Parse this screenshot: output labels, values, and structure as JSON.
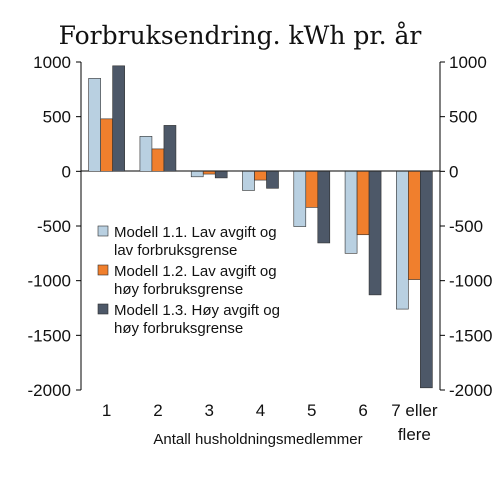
{
  "chart_data": {
    "type": "bar",
    "title": "Forbruksendring. kWh pr. år",
    "xlabel": "Antall husholdningsmedlemmer",
    "ylabel": "",
    "ylim": [
      -2000,
      1000
    ],
    "yticks": [
      "1000",
      "500",
      "0",
      "-500",
      "-1000",
      "-1500",
      "-2000"
    ],
    "categories": [
      "1",
      "2",
      "3",
      "4",
      "5",
      "6",
      "7 eller flere"
    ],
    "category_lines": [
      [
        "1"
      ],
      [
        "2"
      ],
      [
        "3"
      ],
      [
        "4"
      ],
      [
        "5"
      ],
      [
        "6"
      ],
      [
        "7 eller",
        "flere"
      ]
    ],
    "series": [
      {
        "name": "Modell 1.1. Lav avgift og lav forbruksgrense",
        "legend_lines": [
          "Modell 1.1. Lav avgift og",
          "lav forbruksgrense"
        ],
        "color": "#b9d0e1",
        "values": [
          850,
          320,
          -50,
          -175,
          -505,
          -750,
          -1260
        ]
      },
      {
        "name": "Modell 1.2. Lav avgift og høy forbruksgrense",
        "legend_lines": [
          "Modell 1.2. Lav avgift og",
          "høy forbruksgrense"
        ],
        "color": "#f07f2d",
        "values": [
          480,
          205,
          -25,
          -80,
          -330,
          -580,
          -990
        ]
      },
      {
        "name": "Modell 1.3. Høy avgift og høy forbruksgrense",
        "legend_lines": [
          "Modell 1.3. Høy avgift og",
          "høy forbruksgrense"
        ],
        "color": "#4d5868",
        "values": [
          965,
          420,
          -60,
          -155,
          -655,
          -1130,
          -1980
        ]
      }
    ],
    "grid": false,
    "legend_position": "middle-left",
    "secondary_y_axis": true
  }
}
